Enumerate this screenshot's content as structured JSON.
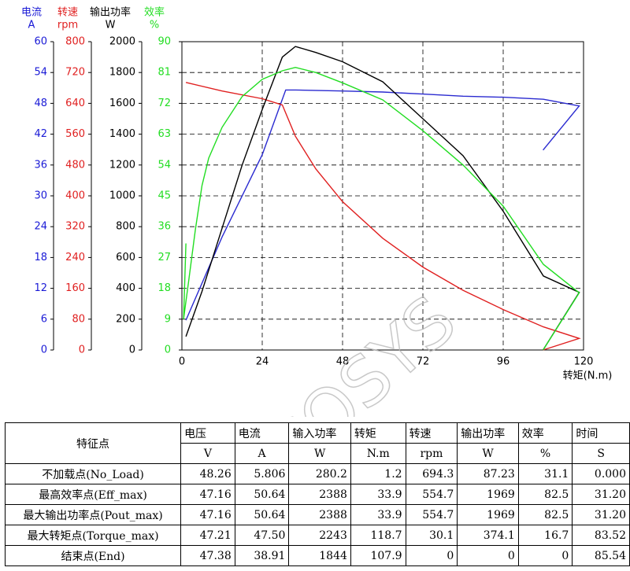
{
  "chart_data": {
    "type": "line",
    "xlabel": "转矩(N.m)",
    "xlim": [
      0,
      120
    ],
    "xticks": [
      0,
      24,
      48,
      72,
      96,
      120
    ],
    "grid": true,
    "watermark": "SiAECOSYS",
    "axes": [
      {
        "name": "电流",
        "unit": "A",
        "color": "#1a1ad6",
        "ylim": [
          0,
          60
        ],
        "yticks": [
          0,
          6,
          12,
          18,
          24,
          30,
          36,
          42,
          48,
          54,
          60
        ]
      },
      {
        "name": "转速",
        "unit": "rpm",
        "color": "#e02020",
        "ylim": [
          0,
          800
        ],
        "yticks": [
          0,
          80,
          160,
          240,
          320,
          400,
          480,
          560,
          640,
          720,
          800
        ]
      },
      {
        "name": "输出功率",
        "unit": "W",
        "color": "#000000",
        "ylim": [
          0,
          2000
        ],
        "yticks": [
          0,
          200,
          400,
          600,
          800,
          1000,
          1200,
          1400,
          1600,
          1800,
          2000
        ]
      },
      {
        "name": "效率",
        "unit": "%",
        "color": "#22dd22",
        "ylim": [
          0,
          90
        ],
        "yticks": [
          0,
          9,
          18,
          27,
          36,
          45,
          54,
          63,
          72,
          81,
          90
        ]
      }
    ],
    "series": [
      {
        "axis": 0,
        "color": "#2a2ad0",
        "x": [
          1.2,
          12,
          24,
          31,
          34,
          48,
          60,
          72,
          84,
          96,
          108,
          118.7,
          107.9
        ],
        "values": [
          5.8,
          22,
          38,
          50.6,
          50.6,
          50.4,
          50.2,
          49.8,
          49.4,
          49.2,
          48.8,
          47.5,
          38.91
        ]
      },
      {
        "axis": 1,
        "color": "#e02020",
        "x": [
          1.2,
          12,
          24,
          30,
          33.9,
          40,
          48,
          60,
          72,
          84,
          96,
          108,
          118.7,
          107.9
        ],
        "values": [
          694.3,
          672,
          652,
          636,
          554.7,
          470,
          385,
          290,
          215,
          155,
          105,
          60,
          30.1,
          0
        ]
      },
      {
        "axis": 2,
        "color": "#000000",
        "x": [
          1.2,
          6,
          12,
          18,
          24,
          30,
          33.9,
          40,
          48,
          60,
          72,
          84,
          96,
          108,
          118.7,
          107.9
        ],
        "values": [
          87.2,
          380,
          790,
          1200,
          1560,
          1900,
          1969,
          1930,
          1870,
          1740,
          1500,
          1260,
          900,
          480,
          374.1,
          0
        ]
      },
      {
        "axis": 3,
        "color": "#22dd22",
        "x": [
          1.2,
          0.5,
          2,
          4,
          6,
          8,
          12,
          18,
          24,
          30,
          33.9,
          40,
          48,
          60,
          72,
          84,
          96,
          108,
          118.7,
          107.9
        ],
        "values": [
          31.1,
          9,
          20,
          35,
          48,
          56,
          65,
          74,
          79,
          81.5,
          82.5,
          81,
          78,
          73,
          64,
          54,
          42,
          25,
          16.7,
          0
        ]
      }
    ]
  },
  "table": {
    "header": [
      "特征点",
      "电压",
      "电流",
      "输入功率",
      "转矩",
      "转速",
      "输出功率",
      "效率",
      "时间"
    ],
    "units": [
      "V",
      "A",
      "W",
      "N.m",
      "rpm",
      "W",
      "%",
      "S"
    ],
    "rows": [
      [
        "不加载点(No_Load)",
        "48.26",
        "5.806",
        "280.2",
        "1.2",
        "694.3",
        "87.23",
        "31.1",
        "0.000"
      ],
      [
        "最高效率点(Eff_max)",
        "47.16",
        "50.64",
        "2388",
        "33.9",
        "554.7",
        "1969",
        "82.5",
        "31.20"
      ],
      [
        "最大输出功率点(Pout_max)",
        "47.16",
        "50.64",
        "2388",
        "33.9",
        "554.7",
        "1969",
        "82.5",
        "31.20"
      ],
      [
        "最大转矩点(Torque_max)",
        "47.21",
        "47.50",
        "2243",
        "118.7",
        "30.1",
        "374.1",
        "16.7",
        "83.52"
      ],
      [
        "结束点(End)",
        "47.38",
        "38.91",
        "1844",
        "107.9",
        "0",
        "0",
        "0",
        "85.54"
      ]
    ]
  }
}
